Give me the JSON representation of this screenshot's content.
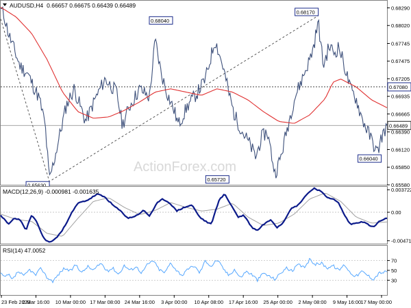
{
  "chart_data": {
    "type": "line",
    "symbol": "AUDUSD,H4",
    "ohlc": "0.66657 0.66675 0.66439 0.66489",
    "watermark": "ActionForex.com",
    "colors": {
      "price": "#3c4f7a",
      "ma": "#e03030",
      "macd": "#0b1a8a",
      "signal": "#a0a0a0",
      "rsi": "#55a7ff",
      "grid": "#808080",
      "box_border": "#1a2a8a",
      "current_box": "#222222"
    },
    "price_panel": {
      "ylim": [
        0.6558,
        0.684
      ],
      "y_ticks": [
        "0.68290",
        "0.68020",
        "0.67745",
        "0.67475",
        "0.67205",
        "0.66935",
        "0.66665",
        "0.66390",
        "0.66120",
        "0.65850",
        "0.65580"
      ],
      "h_line": {
        "value": 0.6708,
        "label": "0.67080"
      },
      "current": {
        "value": 0.66489,
        "label": "0.66489"
      },
      "annotations": [
        {
          "label": "0.65630",
          "x": 0.126,
          "y": 0.6563
        },
        {
          "label": "0.68040",
          "x": 0.445,
          "y": 0.6804
        },
        {
          "label": "0.65720",
          "x": 0.591,
          "y": 0.6572
        },
        {
          "label": "0.68170",
          "x": 0.822,
          "y": 0.6817
        },
        {
          "label": "0.66040",
          "x": 0.985,
          "y": 0.6604
        }
      ],
      "trendline": [
        [
          0.0,
          0.6812
        ],
        [
          0.126,
          0.6563
        ],
        [
          0.822,
          0.6817
        ]
      ],
      "close_keypoints": [
        [
          0.0,
          0.6828
        ],
        [
          0.01,
          0.6815
        ],
        [
          0.02,
          0.679
        ],
        [
          0.035,
          0.6765
        ],
        [
          0.05,
          0.674
        ],
        [
          0.07,
          0.6728
        ],
        [
          0.08,
          0.6715
        ],
        [
          0.1,
          0.669
        ],
        [
          0.115,
          0.665
        ],
        [
          0.126,
          0.6565
        ],
        [
          0.14,
          0.66
        ],
        [
          0.155,
          0.664
        ],
        [
          0.17,
          0.668
        ],
        [
          0.19,
          0.6705
        ],
        [
          0.205,
          0.668
        ],
        [
          0.22,
          0.6655
        ],
        [
          0.245,
          0.669
        ],
        [
          0.27,
          0.672
        ],
        [
          0.3,
          0.67
        ],
        [
          0.315,
          0.665
        ],
        [
          0.335,
          0.668
        ],
        [
          0.36,
          0.6705
        ],
        [
          0.385,
          0.6692
        ],
        [
          0.4,
          0.678
        ],
        [
          0.415,
          0.673
        ],
        [
          0.43,
          0.67
        ],
        [
          0.45,
          0.667
        ],
        [
          0.46,
          0.665
        ],
        [
          0.485,
          0.668
        ],
        [
          0.51,
          0.67
        ],
        [
          0.53,
          0.672
        ],
        [
          0.555,
          0.678
        ],
        [
          0.575,
          0.674
        ],
        [
          0.59,
          0.67
        ],
        [
          0.605,
          0.6665
        ],
        [
          0.625,
          0.664
        ],
        [
          0.645,
          0.662
        ],
        [
          0.66,
          0.66
        ],
        [
          0.675,
          0.663
        ],
        [
          0.69,
          0.664
        ],
        [
          0.71,
          0.6575
        ],
        [
          0.725,
          0.66
        ],
        [
          0.74,
          0.664
        ],
        [
          0.76,
          0.669
        ],
        [
          0.78,
          0.672
        ],
        [
          0.8,
          0.675
        ],
        [
          0.81,
          0.677
        ],
        [
          0.822,
          0.6808
        ],
        [
          0.835,
          0.674
        ],
        [
          0.85,
          0.677
        ],
        [
          0.865,
          0.676
        ],
        [
          0.875,
          0.677
        ],
        [
          0.89,
          0.674
        ],
        [
          0.905,
          0.6705
        ],
        [
          0.92,
          0.669
        ],
        [
          0.935,
          0.666
        ],
        [
          0.95,
          0.664
        ],
        [
          0.965,
          0.662
        ],
        [
          0.975,
          0.6606
        ],
        [
          0.985,
          0.663
        ],
        [
          1.0,
          0.6649
        ]
      ],
      "ma_keypoints": [
        [
          0.0,
          0.683
        ],
        [
          0.04,
          0.6815
        ],
        [
          0.08,
          0.679
        ],
        [
          0.12,
          0.675
        ],
        [
          0.16,
          0.67
        ],
        [
          0.2,
          0.667
        ],
        [
          0.24,
          0.666
        ],
        [
          0.28,
          0.6662
        ],
        [
          0.32,
          0.6672
        ],
        [
          0.36,
          0.6685
        ],
        [
          0.4,
          0.67
        ],
        [
          0.44,
          0.6705
        ],
        [
          0.48,
          0.67
        ],
        [
          0.52,
          0.6695
        ],
        [
          0.56,
          0.6705
        ],
        [
          0.6,
          0.67
        ],
        [
          0.64,
          0.6688
        ],
        [
          0.68,
          0.667
        ],
        [
          0.72,
          0.6655
        ],
        [
          0.76,
          0.6652
        ],
        [
          0.8,
          0.6665
        ],
        [
          0.84,
          0.669
        ],
        [
          0.86,
          0.6715
        ],
        [
          0.88,
          0.672
        ],
        [
          0.92,
          0.6708
        ],
        [
          0.96,
          0.6688
        ],
        [
          1.0,
          0.6676
        ]
      ]
    },
    "macd_panel": {
      "label": "MACD(12,26,9) -0.000981 -0.001635",
      "ylim": [
        -0.0052,
        0.0042
      ],
      "y_ticks": [
        {
          "label": "0.003722",
          "value": 0.003722
        },
        {
          "label": "0.00",
          "value": 0
        },
        {
          "label": "-0.004716",
          "value": -0.004716
        }
      ],
      "macd_keypoints": [
        [
          0.0,
          -0.0005
        ],
        [
          0.02,
          -0.002
        ],
        [
          0.035,
          -0.001
        ],
        [
          0.05,
          -0.0012
        ],
        [
          0.065,
          -0.003
        ],
        [
          0.08,
          -0.0005
        ],
        [
          0.095,
          -0.0018
        ],
        [
          0.11,
          -0.0042
        ],
        [
          0.125,
          -0.005
        ],
        [
          0.14,
          -0.0045
        ],
        [
          0.16,
          -0.003
        ],
        [
          0.18,
          -0.0005
        ],
        [
          0.2,
          0.0015
        ],
        [
          0.225,
          0.002
        ],
        [
          0.25,
          0.003
        ],
        [
          0.27,
          0.0025
        ],
        [
          0.29,
          0.0012
        ],
        [
          0.31,
          0.0002
        ],
        [
          0.33,
          -0.001
        ],
        [
          0.35,
          -0.0006
        ],
        [
          0.37,
          0.0003
        ],
        [
          0.385,
          -0.0006
        ],
        [
          0.405,
          0.0015
        ],
        [
          0.42,
          0.0022
        ],
        [
          0.44,
          0.0014
        ],
        [
          0.455,
          0.0002
        ],
        [
          0.475,
          0.0008
        ],
        [
          0.495,
          0.0012
        ],
        [
          0.515,
          -0.0008
        ],
        [
          0.53,
          -0.0015
        ],
        [
          0.545,
          -0.002
        ],
        [
          0.565,
          0.002
        ],
        [
          0.58,
          0.003
        ],
        [
          0.6,
          0.0008
        ],
        [
          0.615,
          -0.0008
        ],
        [
          0.63,
          -0.0005
        ],
        [
          0.65,
          -0.0025
        ],
        [
          0.665,
          -0.003
        ],
        [
          0.68,
          -0.002
        ],
        [
          0.7,
          -0.0012
        ],
        [
          0.715,
          -0.0025
        ],
        [
          0.73,
          -0.0018
        ],
        [
          0.75,
          0.0005
        ],
        [
          0.77,
          0.0012
        ],
        [
          0.79,
          0.0028
        ],
        [
          0.81,
          0.004
        ],
        [
          0.825,
          0.0036
        ],
        [
          0.845,
          0.0025
        ],
        [
          0.86,
          0.0022
        ],
        [
          0.875,
          0.0015
        ],
        [
          0.89,
          -0.0005
        ],
        [
          0.905,
          -0.002
        ],
        [
          0.92,
          -0.0018
        ],
        [
          0.935,
          -0.0015
        ],
        [
          0.95,
          -0.002
        ],
        [
          0.965,
          -0.0025
        ],
        [
          0.98,
          -0.0015
        ],
        [
          1.0,
          -0.001
        ]
      ],
      "signal_keypoints": [
        [
          0.0,
          -0.0003
        ],
        [
          0.04,
          -0.0012
        ],
        [
          0.08,
          -0.0015
        ],
        [
          0.12,
          -0.0035
        ],
        [
          0.16,
          -0.004
        ],
        [
          0.2,
          -0.001
        ],
        [
          0.24,
          0.0018
        ],
        [
          0.28,
          0.0024
        ],
        [
          0.32,
          0.0008
        ],
        [
          0.36,
          -0.0004
        ],
        [
          0.4,
          0.0003
        ],
        [
          0.44,
          0.0016
        ],
        [
          0.48,
          0.0008
        ],
        [
          0.52,
          0.0002
        ],
        [
          0.56,
          0.0005
        ],
        [
          0.6,
          0.0015
        ],
        [
          0.64,
          -0.0008
        ],
        [
          0.68,
          -0.0022
        ],
        [
          0.72,
          -0.0018
        ],
        [
          0.76,
          -0.0003
        ],
        [
          0.8,
          0.0022
        ],
        [
          0.84,
          0.0032
        ],
        [
          0.88,
          0.0018
        ],
        [
          0.92,
          -0.0008
        ],
        [
          0.96,
          -0.0018
        ],
        [
          1.0,
          -0.0016
        ]
      ]
    },
    "rsi_panel": {
      "label": "RSI(14) 47.0052",
      "ylim": [
        0,
        100
      ],
      "y_ticks": [
        {
          "label": "70",
          "value": 70
        },
        {
          "label": "50",
          "value": 50
        },
        {
          "label": "30",
          "value": 30
        }
      ],
      "levels": [
        70,
        30
      ],
      "rsi_keypoints": [
        [
          0.0,
          45
        ],
        [
          0.01,
          35
        ],
        [
          0.02,
          42
        ],
        [
          0.03,
          30
        ],
        [
          0.045,
          48
        ],
        [
          0.06,
          38
        ],
        [
          0.075,
          52
        ],
        [
          0.09,
          40
        ],
        [
          0.105,
          55
        ],
        [
          0.12,
          35
        ],
        [
          0.135,
          28
        ],
        [
          0.15,
          42
        ],
        [
          0.165,
          55
        ],
        [
          0.18,
          48
        ],
        [
          0.195,
          62
        ],
        [
          0.21,
          45
        ],
        [
          0.225,
          58
        ],
        [
          0.24,
          50
        ],
        [
          0.26,
          65
        ],
        [
          0.275,
          48
        ],
        [
          0.29,
          55
        ],
        [
          0.305,
          42
        ],
        [
          0.32,
          60
        ],
        [
          0.335,
          50
        ],
        [
          0.35,
          58
        ],
        [
          0.365,
          45
        ],
        [
          0.38,
          62
        ],
        [
          0.395,
          70
        ],
        [
          0.41,
          52
        ],
        [
          0.425,
          45
        ],
        [
          0.44,
          66
        ],
        [
          0.455,
          50
        ],
        [
          0.47,
          40
        ],
        [
          0.485,
          52
        ],
        [
          0.5,
          60
        ],
        [
          0.515,
          45
        ],
        [
          0.53,
          70
        ],
        [
          0.545,
          58
        ],
        [
          0.56,
          72
        ],
        [
          0.575,
          55
        ],
        [
          0.59,
          40
        ],
        [
          0.605,
          52
        ],
        [
          0.62,
          35
        ],
        [
          0.635,
          48
        ],
        [
          0.65,
          42
        ],
        [
          0.665,
          30
        ],
        [
          0.68,
          45
        ],
        [
          0.695,
          38
        ],
        [
          0.71,
          32
        ],
        [
          0.725,
          45
        ],
        [
          0.74,
          55
        ],
        [
          0.755,
          48
        ],
        [
          0.77,
          62
        ],
        [
          0.785,
          55
        ],
        [
          0.8,
          72
        ],
        [
          0.815,
          62
        ],
        [
          0.83,
          65
        ],
        [
          0.845,
          55
        ],
        [
          0.86,
          60
        ],
        [
          0.875,
          50
        ],
        [
          0.89,
          62
        ],
        [
          0.905,
          45
        ],
        [
          0.92,
          38
        ],
        [
          0.935,
          48
        ],
        [
          0.95,
          40
        ],
        [
          0.965,
          32
        ],
        [
          0.98,
          45
        ],
        [
          1.0,
          47
        ]
      ]
    },
    "x_ticks": [
      "23 Feb 2023",
      "2 Mar 16:00",
      "10 Mar 00:00",
      "17 Mar 08:00",
      "24 Mar 16:00",
      "3 Apr 00:00",
      "10 Apr 08:00",
      "17 Apr 16:00",
      "25 Apr 00:00",
      "2 May 08:00",
      "9 May 16:00",
      "17 May 00:00"
    ]
  }
}
